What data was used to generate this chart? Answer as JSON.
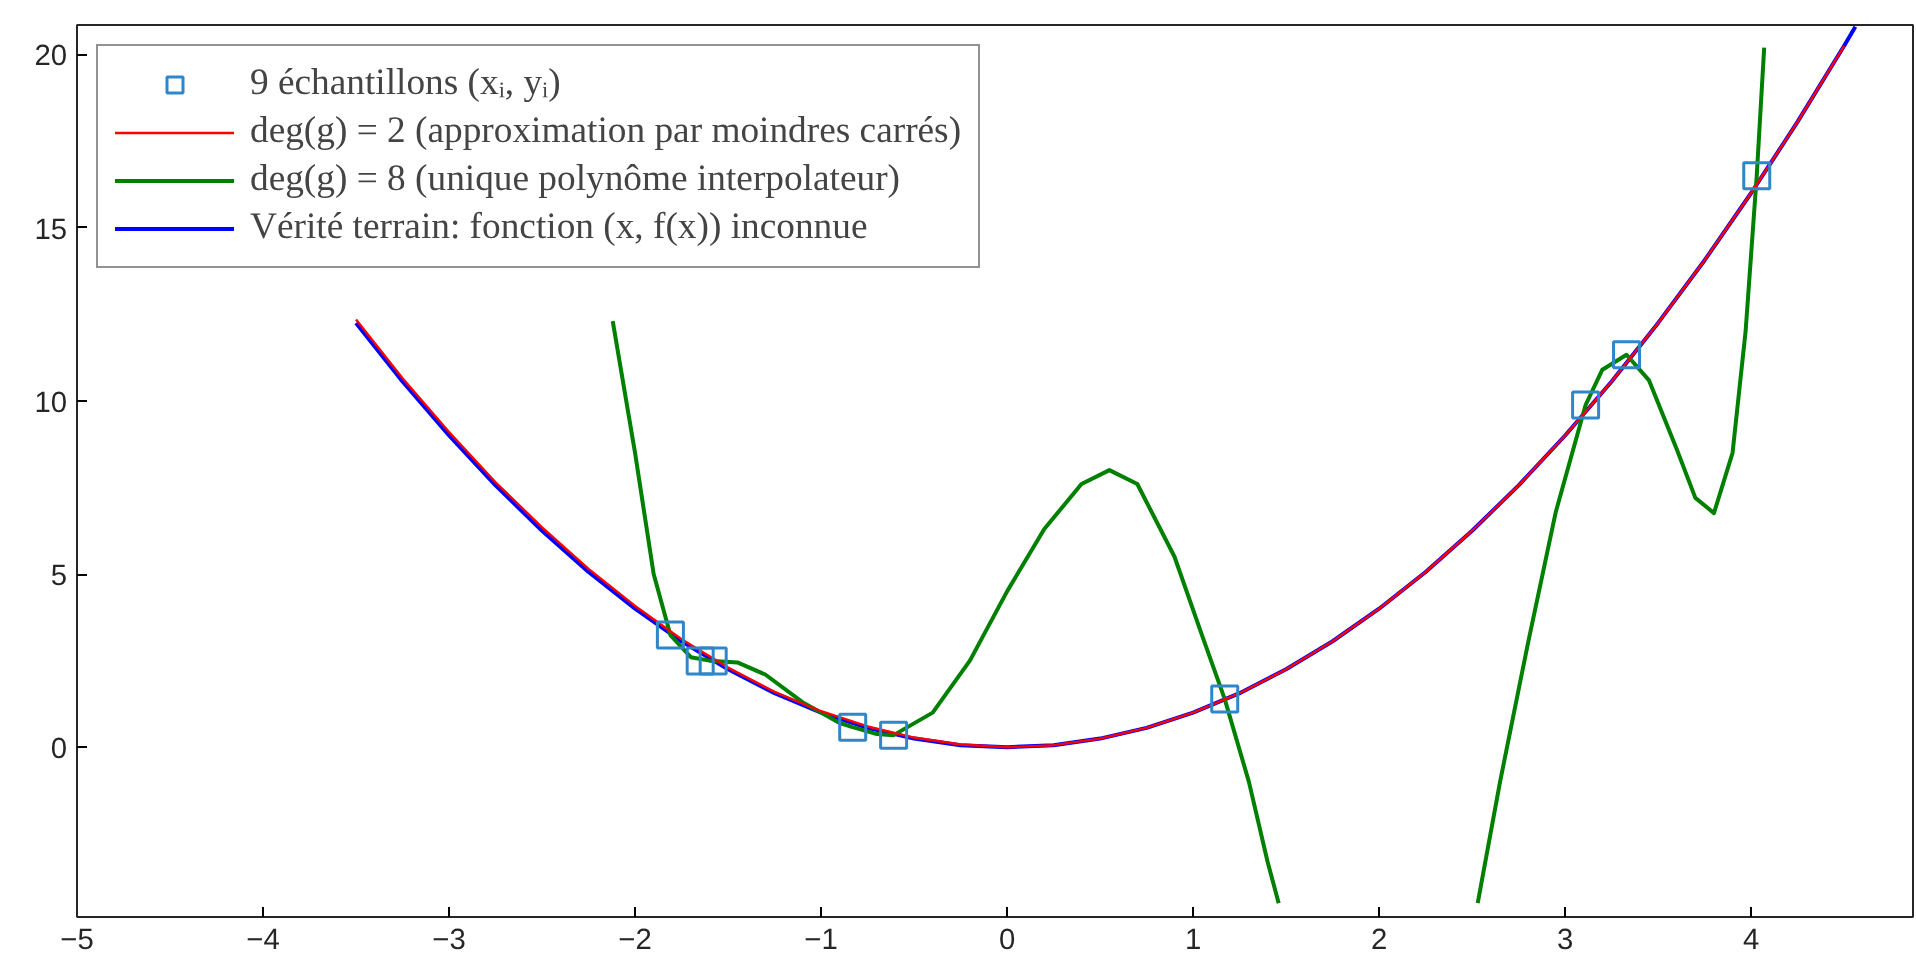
{
  "chart_data": {
    "type": "line",
    "xlim": [
      -5,
      4.87
    ],
    "ylim": [
      -4.9,
      20.85
    ],
    "xticks": [
      -5,
      -4,
      -3,
      -2,
      -1,
      0,
      1,
      2,
      3,
      4
    ],
    "yticks": [
      0,
      5,
      10,
      15,
      20
    ],
    "grid": false,
    "legend": "top left",
    "series": [
      {
        "name": "9 échantillons (xᵢ, yᵢ)",
        "type": "scatter",
        "marker": "square",
        "color": "#2f86c8",
        "x": [
          -1.81,
          -1.65,
          -1.58,
          -0.83,
          -0.61,
          1.17,
          3.11,
          3.33,
          4.03
        ],
        "values": [
          3.24,
          2.49,
          2.49,
          0.58,
          0.35,
          1.39,
          9.88,
          11.33,
          16.5
        ]
      },
      {
        "name": "deg(g) = 2 (approximation par moindres carrés)",
        "color": "#ff0000",
        "x": [
          -3.5,
          -3.25,
          -3,
          -2.75,
          -2.5,
          -2.25,
          -2,
          -1.75,
          -1.5,
          -1.25,
          -1,
          -0.75,
          -0.5,
          -0.25,
          0,
          0.25,
          0.5,
          0.75,
          1,
          1.25,
          1.5,
          1.75,
          2,
          2.25,
          2.5,
          2.75,
          3,
          3.25,
          3.5,
          3.75,
          4,
          4.25,
          4.5
        ],
        "values": [
          12.35,
          10.65,
          9.1,
          7.65,
          6.35,
          5.15,
          4.08,
          3.12,
          2.3,
          1.6,
          1.04,
          0.6,
          0.28,
          0.08,
          0.0,
          0.06,
          0.25,
          0.56,
          1.0,
          1.56,
          2.25,
          3.06,
          4.0,
          5.06,
          6.25,
          7.56,
          9.0,
          10.56,
          12.25,
          14.06,
          16.0,
          18.06,
          20.25
        ]
      },
      {
        "name": "deg(g) = 8 (unique polynôme interpolateur)",
        "color": "#008000",
        "x": [
          -2.12,
          -2.0,
          -1.9,
          -1.81,
          -1.7,
          -1.6,
          -1.45,
          -1.3,
          -1.1,
          -0.9,
          -0.83,
          -0.7,
          -0.61,
          -0.4,
          -0.2,
          0,
          0.2,
          0.4,
          0.55,
          0.7,
          0.9,
          1.05,
          1.17,
          1.3,
          1.4,
          1.46,
          2.0,
          2.53,
          2.65,
          2.8,
          2.95,
          3.11,
          3.2,
          3.33,
          3.45,
          3.6,
          3.7,
          3.8,
          3.9,
          3.97,
          4.03,
          4.07
        ],
        "values": [
          12.3,
          8.5,
          5,
          3.24,
          2.6,
          2.5,
          2.45,
          2.1,
          1.3,
          0.7,
          0.58,
          0.38,
          0.35,
          1.0,
          2.5,
          4.5,
          6.3,
          7.6,
          8.0,
          7.6,
          5.5,
          3.2,
          1.39,
          -1,
          -3.3,
          -4.5,
          null,
          -4.5,
          -1,
          3,
          6.8,
          9.88,
          10.9,
          11.33,
          10.6,
          8.6,
          7.2,
          6.76,
          8.5,
          12,
          16.5,
          20.2
        ]
      },
      {
        "name": "Vérité terrain: fonction (x, f(x)) inconnue",
        "color": "#0000ff",
        "x": [
          -3.5,
          -3.25,
          -3,
          -2.75,
          -2.5,
          -2.25,
          -2,
          -1.75,
          -1.5,
          -1.25,
          -1,
          -0.75,
          -0.5,
          -0.25,
          0,
          0.25,
          0.5,
          0.75,
          1,
          1.25,
          1.5,
          1.75,
          2,
          2.25,
          2.5,
          2.75,
          3,
          3.25,
          3.5,
          3.75,
          4,
          4.25,
          4.5,
          4.56
        ],
        "values": [
          12.25,
          10.56,
          9.0,
          7.56,
          6.25,
          5.06,
          4.0,
          3.06,
          2.25,
          1.56,
          1.0,
          0.56,
          0.25,
          0.06,
          0.0,
          0.06,
          0.25,
          0.56,
          1.0,
          1.56,
          2.25,
          3.06,
          4.0,
          5.06,
          6.25,
          7.56,
          9.0,
          10.56,
          12.25,
          14.06,
          16.0,
          18.06,
          20.25,
          20.8
        ]
      }
    ]
  }
}
